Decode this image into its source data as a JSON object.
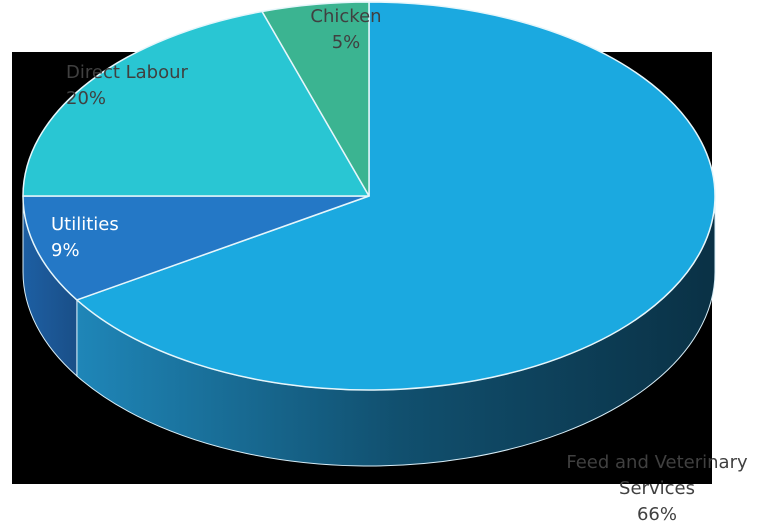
{
  "chart_data": {
    "type": "pie",
    "title": "",
    "three_d": true,
    "background_color": "#000000",
    "categories": [
      "Feed and Veterinary Services",
      "Utilities",
      "Direct Labour",
      "Chicken"
    ],
    "values": [
      66,
      9,
      20,
      5
    ],
    "labels": [
      "66%",
      "9%",
      "20%",
      "5%"
    ],
    "colors": [
      "#1ba9e0",
      "#2478c6",
      "#29c6d3",
      "#3bb491"
    ],
    "legend": "none",
    "label_color_outside": "#404040",
    "label_color_inside": "#ffffff"
  }
}
